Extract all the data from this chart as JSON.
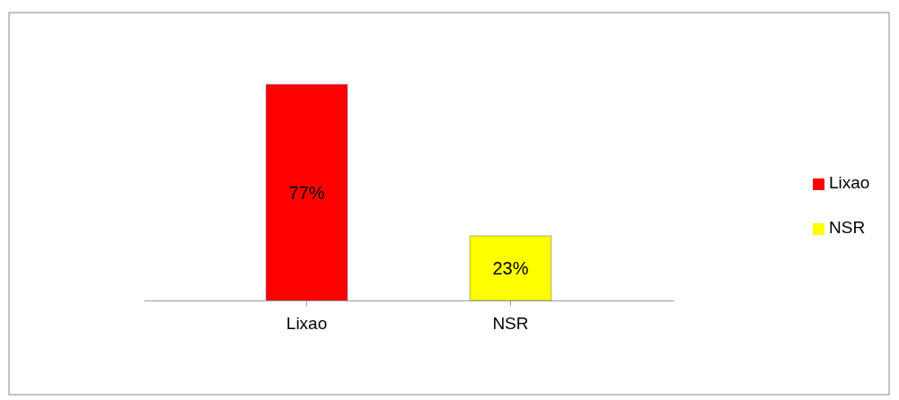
{
  "chart_data": {
    "type": "bar",
    "categories": [
      "Lixao",
      "NSR"
    ],
    "series": [
      {
        "name": "Lixao",
        "color": "#ff0000",
        "values": [
          77,
          null
        ],
        "value_labels": [
          "77%",
          null
        ]
      },
      {
        "name": "NSR",
        "color": "#ffff00",
        "values": [
          null,
          23
        ],
        "value_labels": [
          null,
          "23%"
        ]
      }
    ],
    "legend": "right"
  }
}
